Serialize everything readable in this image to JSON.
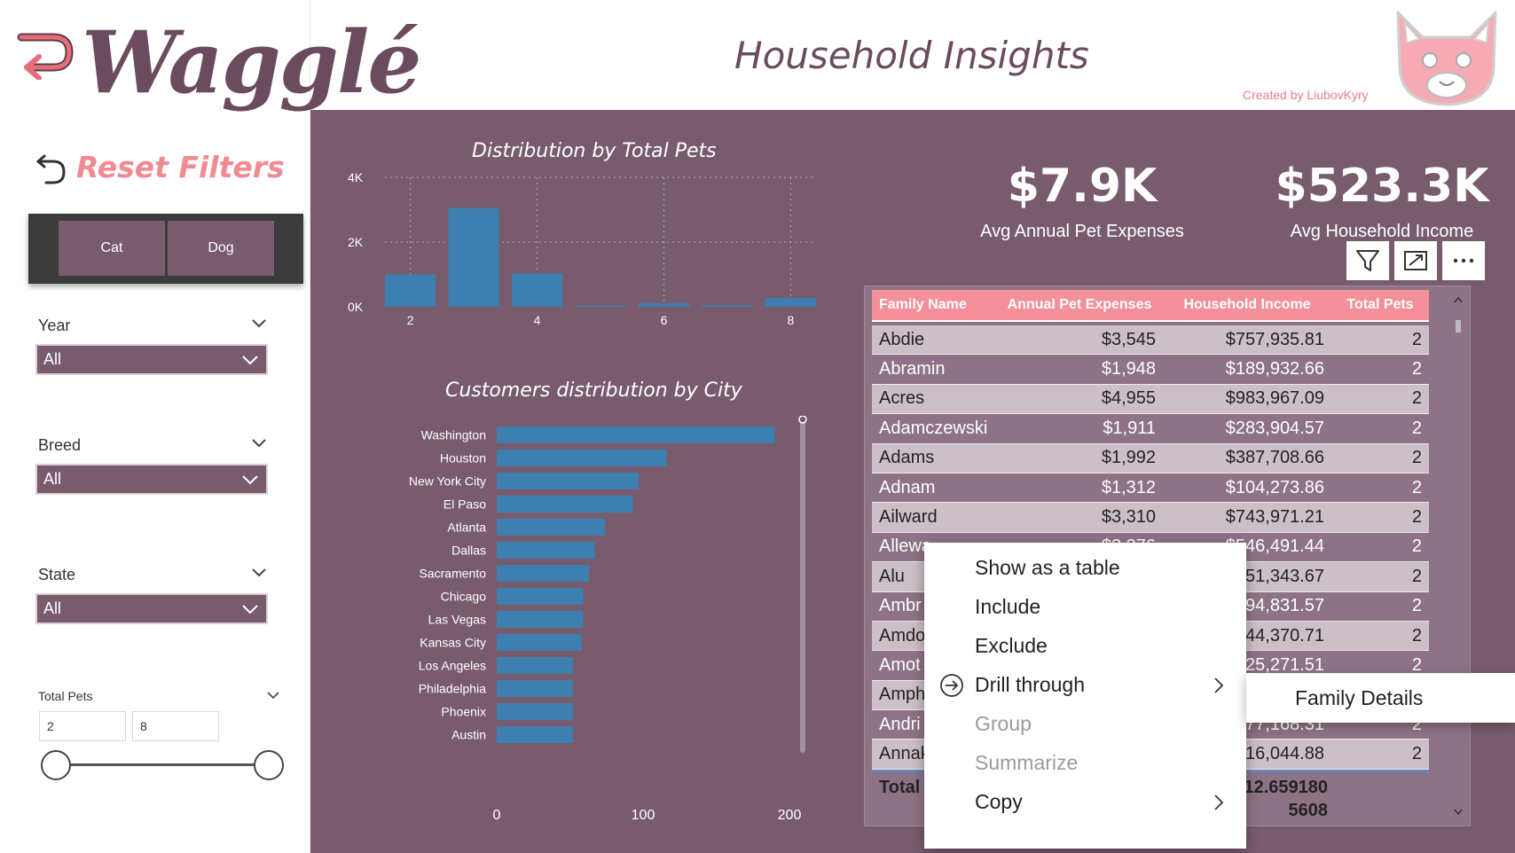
{
  "logo": {
    "text": "Wagglé"
  },
  "reset": {
    "label": "Reset Filters"
  },
  "pet_toggle": {
    "options": [
      "Cat",
      "Dog"
    ]
  },
  "slicers": {
    "year": {
      "title": "Year",
      "value": "All"
    },
    "breed": {
      "title": "Breed",
      "value": "All"
    },
    "state": {
      "title": "State",
      "value": "All"
    },
    "total_pets": {
      "title": "Total Pets",
      "min": "2",
      "max": "8"
    }
  },
  "header": {
    "title": "Household Insights",
    "credit": "Created by LiubovKyry"
  },
  "kpis": [
    {
      "value": "$7.9K",
      "label": "Avg Annual  Pet  Expenses"
    },
    {
      "value": "$523.3K",
      "label": "Avg Household Income"
    }
  ],
  "visual_buttons": {
    "filter_icon": "filter-icon",
    "focus_icon": "focus-mode-icon",
    "more_icon": "more-options-icon"
  },
  "chart_data": [
    {
      "type": "bar",
      "title": "Distribution by Total Pets",
      "x": [
        2,
        3,
        4,
        5,
        6,
        7,
        8
      ],
      "values": [
        1000,
        3050,
        1030,
        40,
        110,
        50,
        270
      ],
      "xticks": [
        "2",
        "4",
        "6",
        "8"
      ],
      "yticks": [
        "0K",
        "2K",
        "4K"
      ],
      "ylim": [
        0,
        4000
      ],
      "grid": true,
      "color": "#3d7fae"
    },
    {
      "type": "bar",
      "orientation": "horizontal",
      "title": "Customers distribution by City",
      "categories": [
        "Washington",
        "Houston",
        "New York City",
        "El Paso",
        "Atlanta",
        "Dallas",
        "Sacramento",
        "Chicago",
        "Las Vegas",
        "Kansas City",
        "Los Angeles",
        "Philadelphia",
        "Phoenix",
        "Austin"
      ],
      "values": [
        190,
        116,
        97,
        93,
        74,
        67,
        63,
        59,
        59,
        58,
        52,
        52,
        52,
        52
      ],
      "xticks": [
        "0",
        "100",
        "200"
      ],
      "xlim": [
        0,
        200
      ],
      "color": "#3d7fae"
    }
  ],
  "table": {
    "columns": [
      "Family Name",
      "Annual Pet Expenses",
      "Household Income",
      "Total Pets"
    ],
    "rows": [
      [
        "Abdie",
        "$3,545",
        "$757,935.81",
        "2"
      ],
      [
        "Abramin",
        "$1,948",
        "$189,932.66",
        "2"
      ],
      [
        "Acres",
        "$4,955",
        "$983,967.09",
        "2"
      ],
      [
        "Adamczewski",
        "$1,911",
        "$283,904.57",
        "2"
      ],
      [
        "Adams",
        "$1,992",
        "$387,708.66",
        "2"
      ],
      [
        "Adnam",
        "$1,312",
        "$104,273.86",
        "2"
      ],
      [
        "Ailward",
        "$3,310",
        "$743,971.21",
        "2"
      ],
      [
        "Allewa",
        "$3,376",
        "$546,491.44",
        "2"
      ],
      [
        "Alu",
        "",
        "251,343.67",
        "2"
      ],
      [
        "Ambr",
        "",
        "$94,831.57",
        "2"
      ],
      [
        "Amdo",
        "",
        "244,370.71",
        "2"
      ],
      [
        "Amot",
        "",
        "425,271.51",
        "2"
      ],
      [
        "Amph",
        "",
        "",
        ""
      ],
      [
        "Andri",
        "",
        "377,168.31",
        "2"
      ],
      [
        "Annak",
        "",
        "616,044.88",
        "2"
      ]
    ],
    "total_label": "Total",
    "total_income": "12.659180",
    "total_pets": "5608"
  },
  "context_menu": {
    "items": [
      "Show as a table",
      "Include",
      "Exclude",
      "Drill through",
      "Group",
      "Summarize",
      "Copy"
    ],
    "submenu": "Family Details"
  },
  "colors": {
    "dashboard_bg": "#785c6e",
    "accent": "#f4909a",
    "brand_text": "#6b4c5e",
    "bar": "#3d7fae"
  }
}
